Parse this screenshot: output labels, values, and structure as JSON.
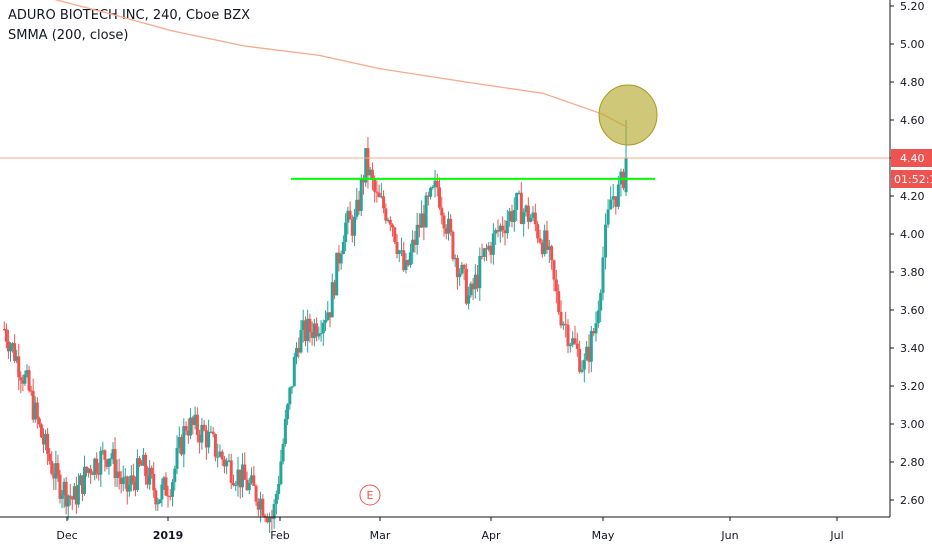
{
  "legend": {
    "title": "ADURO BIOTECH INC, 240, Cboe BZX",
    "indicator": "SMMA (200, close)"
  },
  "colors": {
    "up": "#26a69a",
    "down": "#ef5350",
    "smma": "#f7a98b",
    "last_price_line": "#f7a98b",
    "last_price_tag": "#ef5350",
    "resistance_line": "#00ff00",
    "highlight_circle": "#b5ab2f",
    "earnings_marker": "#ef5350"
  },
  "chart_data": {
    "type": "candlestick",
    "title": "ADURO BIOTECH INC, 240, Cboe BZX",
    "ylim": [
      2.42,
      5.26
    ],
    "y_ticks": [
      "5.20",
      "5.00",
      "4.80",
      "4.60",
      "4.40",
      "4.20",
      "4.00",
      "3.80",
      "3.60",
      "3.40",
      "3.20",
      "3.00",
      "2.80",
      "2.60"
    ],
    "x_ticks": [
      "Dec",
      "2019",
      "Feb",
      "Mar",
      "Apr",
      "May",
      "Jun",
      "Jul"
    ],
    "grid": false,
    "last_price": {
      "value": "4.40",
      "countdown": "01:52:1"
    },
    "resistance_level": 4.29,
    "smma_200": [
      {
        "x": "Nov 12",
        "y": 5.3
      },
      {
        "x": "Nov 26",
        "y": 5.24
      },
      {
        "x": "Dec 14",
        "y": 5.16
      },
      {
        "x": "Jan 2",
        "y": 5.07
      },
      {
        "x": "Jan 22",
        "y": 4.99
      },
      {
        "x": "Feb 12",
        "y": 4.94
      },
      {
        "x": "Mar 1",
        "y": 4.87
      },
      {
        "x": "Mar 25",
        "y": 4.8
      },
      {
        "x": "Apr 15",
        "y": 4.74
      },
      {
        "x": "May 1",
        "y": 4.63
      },
      {
        "x": "May 7",
        "y": 4.56
      }
    ],
    "price_path": [
      {
        "x": "Nov 12",
        "close": 3.5
      },
      {
        "x": "Nov 15",
        "close": 3.38
      },
      {
        "x": "Nov 19",
        "close": 3.2
      },
      {
        "x": "Nov 23",
        "close": 2.95
      },
      {
        "x": "Nov 28",
        "close": 2.7
      },
      {
        "x": "Dec 3",
        "close": 2.6
      },
      {
        "x": "Dec 8",
        "close": 2.78
      },
      {
        "x": "Dec 14",
        "close": 2.85
      },
      {
        "x": "Dec 19",
        "close": 2.64
      },
      {
        "x": "Dec 24",
        "close": 2.78
      },
      {
        "x": "Dec 29",
        "close": 2.62
      },
      {
        "x": "Jan 2",
        "close": 2.7
      },
      {
        "x": "Jan 6",
        "close": 3.0
      },
      {
        "x": "Jan 11",
        "close": 2.95
      },
      {
        "x": "Jan 16",
        "close": 2.82
      },
      {
        "x": "Jan 21",
        "close": 2.72
      },
      {
        "x": "Jan 26",
        "close": 2.62
      },
      {
        "x": "Jan 30",
        "close": 2.5
      },
      {
        "x": "Feb 3",
        "close": 3.05
      },
      {
        "x": "Feb 6",
        "close": 3.45
      },
      {
        "x": "Feb 11",
        "close": 3.52
      },
      {
        "x": "Feb 15",
        "close": 3.62
      },
      {
        "x": "Feb 19",
        "close": 4.05
      },
      {
        "x": "Feb 22",
        "close": 4.05
      },
      {
        "x": "Feb 25",
        "close": 4.38
      },
      {
        "x": "Feb 28",
        "close": 4.18
      },
      {
        "x": "Mar 4",
        "close": 4.1
      },
      {
        "x": "Mar 8",
        "close": 3.78
      },
      {
        "x": "Mar 12",
        "close": 4.05
      },
      {
        "x": "Mar 17",
        "close": 4.25
      },
      {
        "x": "Mar 21",
        "close": 3.95
      },
      {
        "x": "Mar 26",
        "close": 3.65
      },
      {
        "x": "Mar 30",
        "close": 3.88
      },
      {
        "x": "Apr 4",
        "close": 4.05
      },
      {
        "x": "Apr 8",
        "close": 4.15
      },
      {
        "x": "Apr 12",
        "close": 4.08
      },
      {
        "x": "Apr 16",
        "close": 3.92
      },
      {
        "x": "Apr 19",
        "close": 3.62
      },
      {
        "x": "Apr 23",
        "close": 3.42
      },
      {
        "x": "Apr 26",
        "close": 3.3
      },
      {
        "x": "Apr 29",
        "close": 3.52
      },
      {
        "x": "May 1",
        "close": 3.88
      },
      {
        "x": "May 3",
        "close": 4.2
      },
      {
        "x": "May 5",
        "close": 4.22
      },
      {
        "x": "May 7",
        "close": 4.4
      }
    ]
  }
}
